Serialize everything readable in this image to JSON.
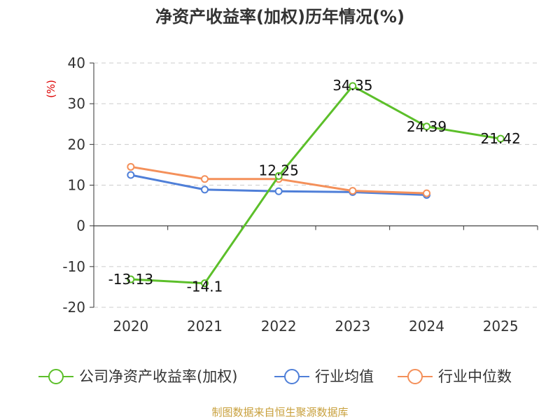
{
  "chart_data": {
    "type": "line",
    "title": "净资产收益率(加权)历年情况(%)",
    "ylabel": "(%)",
    "xlabel": "",
    "categories": [
      "2020",
      "2021",
      "2022",
      "2023",
      "2024",
      "2025"
    ],
    "ylim": [
      -20,
      40
    ],
    "yticks": [
      40,
      30,
      20,
      10,
      0,
      -10,
      -20
    ],
    "grid": true,
    "legend_position": "bottom",
    "series": [
      {
        "name": "公司净资产收益率(加权)",
        "color": "#5cbf2a",
        "values": [
          -13.13,
          -14.1,
          12.25,
          34.35,
          24.39,
          21.42
        ],
        "labels": [
          "-13.13",
          "-14.1",
          "12.25",
          "34.35",
          "24.39",
          "21.42"
        ]
      },
      {
        "name": "行业均值",
        "color": "#4f7fd8",
        "values": [
          12.5,
          8.9,
          8.5,
          8.3,
          7.6,
          null
        ]
      },
      {
        "name": "行业中位数",
        "color": "#f4905a",
        "values": [
          14.5,
          11.5,
          11.5,
          8.6,
          8.0,
          null
        ]
      }
    ],
    "source": "制图数据来自恒生聚源数据库"
  }
}
